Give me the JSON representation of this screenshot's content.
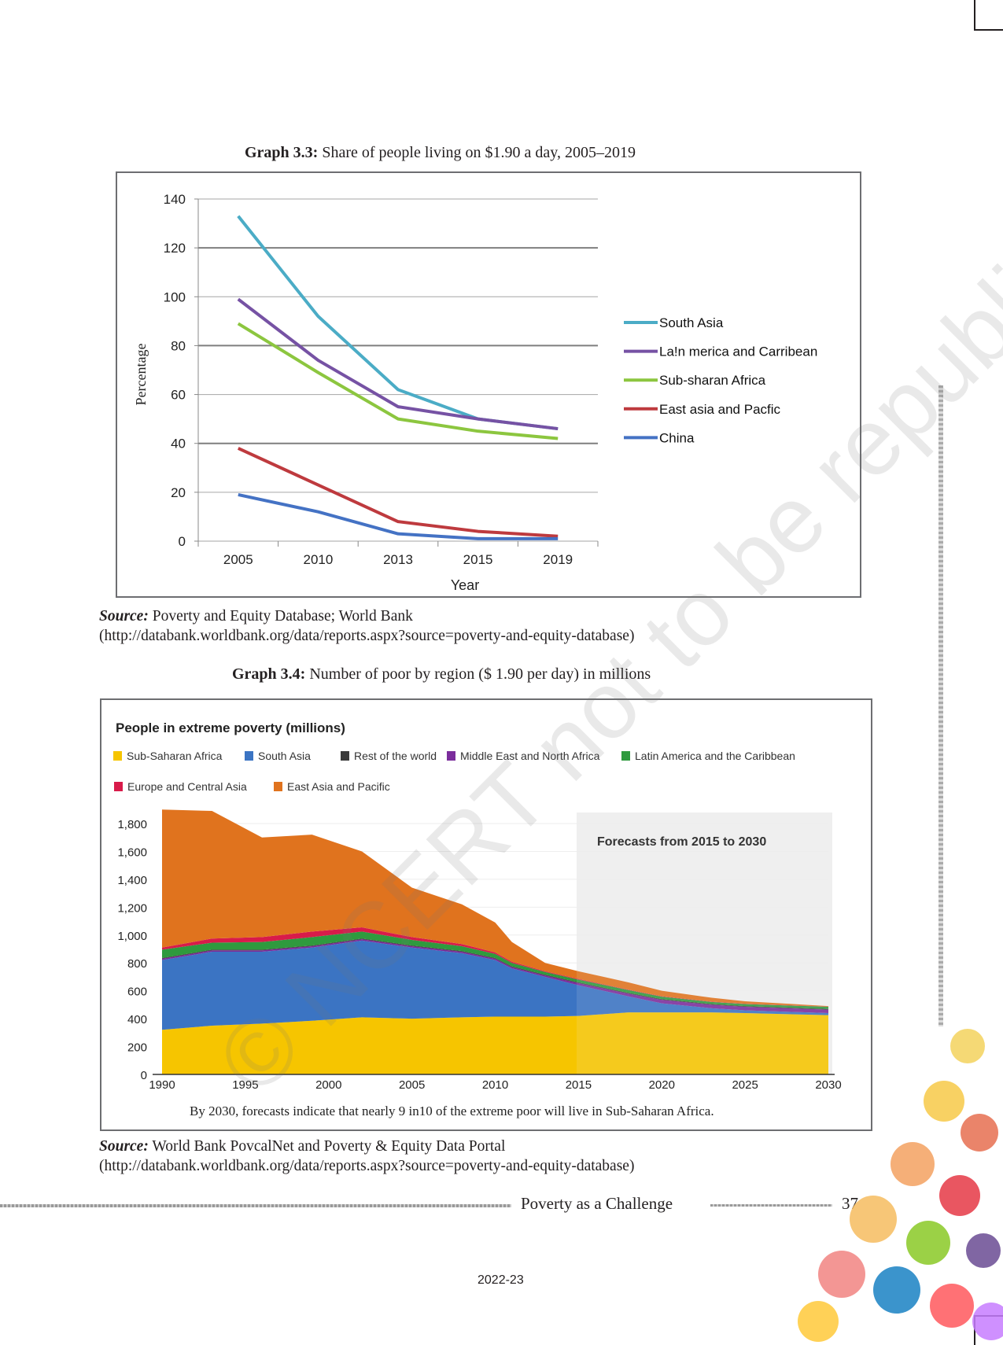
{
  "graph33": {
    "caption_bold": "Graph 3.3:",
    "caption_rest": " Share of people living on $1.90 a day, 2005–2019",
    "source_label": "Source:",
    "source_text": " Poverty and Equity Database; World Bank",
    "source_url": "(http://databank.worldbank.org/data/reports.aspx?source=poverty-and-equity-database)"
  },
  "graph34": {
    "caption_bold": "Graph 3.4:",
    "caption_rest": " Number of poor by region ($ 1.90 per day) in millions",
    "source_label": "Source:",
    "source_text": " World Bank PovcalNet and Poverty & Equity Data Portal",
    "source_url": "(http://databank.worldbank.org/data/reports.aspx?source=poverty-and-equity-database)"
  },
  "footer": {
    "chapter": "Poverty as a Challenge",
    "page_number": "37",
    "year": "2022-23"
  },
  "watermark": "© NCERT not to be republished",
  "chart_data": [
    {
      "type": "line",
      "xlabel": "Year",
      "ylabel": "Percentage",
      "categories": [
        "2005",
        "2010",
        "2013",
        "2015",
        "2019"
      ],
      "ylim": [
        0,
        140
      ],
      "yticks": [
        "0",
        "20",
        "40",
        "60",
        "80",
        "100",
        "120",
        "140"
      ],
      "grid": true,
      "legend_position": "right",
      "series": [
        {
          "name": "South Asia",
          "color": "#4bacc6",
          "values": [
            133,
            92,
            62,
            50,
            46
          ]
        },
        {
          "name": "La!n merica and Carribean",
          "color": "#7652a4",
          "values": [
            99,
            74,
            55,
            50,
            46
          ]
        },
        {
          "name": "Sub-sharan Africa",
          "color": "#8cc63f",
          "values": [
            89,
            69,
            50,
            45,
            42
          ]
        },
        {
          "name": "East asia and Pacfic",
          "color": "#be3a3e",
          "values": [
            38,
            23,
            8,
            4,
            2
          ]
        },
        {
          "name": "China",
          "color": "#4472c4",
          "values": [
            19,
            12,
            3,
            1,
            1
          ]
        }
      ]
    },
    {
      "type": "area",
      "stacked": true,
      "title": "People in extreme poverty (millions)",
      "annotation": "Forecasts from 2015 to 2030",
      "footnote": "By 2030, forecasts indicate that nearly 9 in10 of the extreme poor will live in Sub-Saharan Africa.",
      "xlim": [
        1990,
        2030
      ],
      "ylim": [
        0,
        1800
      ],
      "xticks": [
        "1990",
        "1995",
        "2000",
        "2005",
        "2010",
        "2015",
        "2020",
        "2025",
        "2030"
      ],
      "yticks": [
        "0",
        "200",
        "400",
        "600",
        "800",
        "1,000",
        "1,200",
        "1,400",
        "1,600",
        "1,800"
      ],
      "legend_position": "top",
      "x": [
        1990,
        1993,
        1996,
        1999,
        2002,
        2005,
        2008,
        2010,
        2011,
        2013,
        2015,
        2018,
        2020,
        2023,
        2025,
        2030
      ],
      "legend": [
        {
          "name": "Sub-Saharan Africa",
          "color": "#f6c500"
        },
        {
          "name": "South Asia",
          "color": "#3b74c3"
        },
        {
          "name": "Rest of the world",
          "color": "#3a3a3a"
        },
        {
          "name": "Middle East and North Africa",
          "color": "#7b2d9c"
        },
        {
          "name": "Latin America and the Caribbean",
          "color": "#2f9a3e"
        },
        {
          "name": "Europe and Central Asia",
          "color": "#d81b4a"
        },
        {
          "name": "East Asia and Pacific",
          "color": "#e0731e"
        }
      ],
      "series": [
        {
          "name": "Sub-Saharan Africa",
          "color": "#f6c500",
          "values": [
            320,
            350,
            365,
            385,
            410,
            400,
            410,
            415,
            415,
            415,
            420,
            445,
            445,
            445,
            440,
            425
          ]
        },
        {
          "name": "South Asia",
          "color": "#3b74c3",
          "values": [
            500,
            530,
            515,
            525,
            550,
            510,
            460,
            405,
            345,
            285,
            220,
            115,
            65,
            30,
            20,
            15
          ]
        },
        {
          "name": "Middle East and North Africa",
          "color": "#7b2d9c",
          "values": [
            10,
            10,
            10,
            10,
            10,
            10,
            10,
            10,
            10,
            10,
            15,
            20,
            25,
            25,
            25,
            25
          ]
        },
        {
          "name": "Rest of the world",
          "color": "#3a3a3a",
          "values": [
            5,
            5,
            5,
            5,
            5,
            5,
            5,
            5,
            5,
            5,
            5,
            5,
            5,
            5,
            5,
            5
          ]
        },
        {
          "name": "Latin America and the Caribbean",
          "color": "#2f9a3e",
          "values": [
            60,
            50,
            55,
            60,
            50,
            40,
            35,
            30,
            25,
            20,
            20,
            20,
            18,
            15,
            15,
            15
          ]
        },
        {
          "name": "Europe and Central Asia",
          "color": "#d81b4a",
          "values": [
            15,
            30,
            35,
            40,
            30,
            20,
            15,
            10,
            8,
            5,
            5,
            3,
            3,
            2,
            2,
            2
          ]
        },
        {
          "name": "East Asia and Pacific",
          "color": "#e0731e",
          "values": [
            990,
            915,
            715,
            695,
            545,
            355,
            285,
            215,
            142,
            60,
            55,
            52,
            39,
            28,
            18,
            3
          ]
        }
      ]
    }
  ]
}
